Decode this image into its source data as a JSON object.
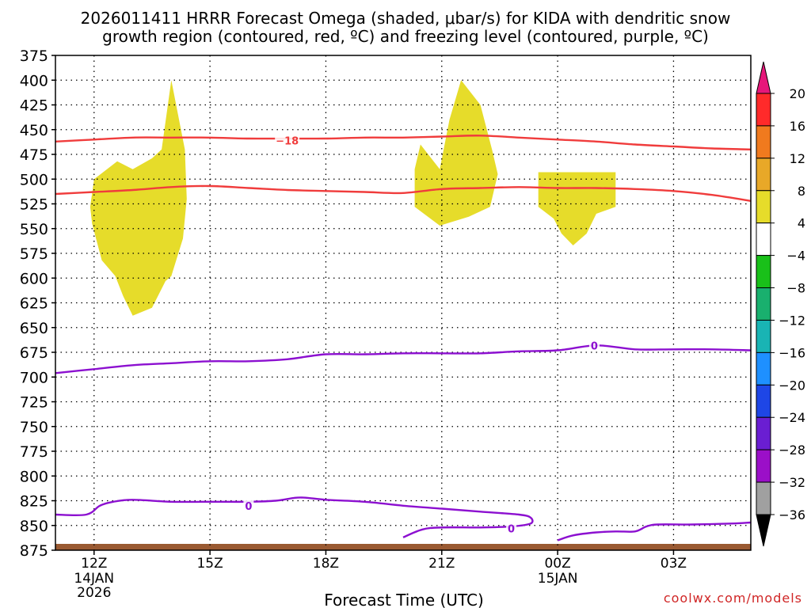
{
  "chart_data": {
    "type": "contour-timeheight",
    "title_line1": "2026011411 HRRR Forecast Omega (shaded, μbar/s) for KIDA with dendritic snow",
    "title_line2": "growth region (contoured, red, ºC) and freezing level (contoured, purple, ºC)",
    "xlabel": "Forecast Time (UTC)",
    "credit": "coolwx.com/models",
    "x_range_hours": [
      11,
      29
    ],
    "y_range_hpa": [
      375,
      875
    ],
    "y_ticks": [
      375,
      400,
      425,
      450,
      475,
      500,
      525,
      550,
      575,
      600,
      625,
      650,
      675,
      700,
      725,
      750,
      775,
      800,
      825,
      850,
      875
    ],
    "x_ticks": [
      {
        "hour": 12,
        "label": "12Z",
        "sub": [
          "14JAN",
          "2026"
        ]
      },
      {
        "hour": 15,
        "label": "15Z",
        "sub": []
      },
      {
        "hour": 18,
        "label": "18Z",
        "sub": []
      },
      {
        "hour": 21,
        "label": "21Z",
        "sub": []
      },
      {
        "hour": 24,
        "label": "00Z",
        "sub": [
          "15JAN"
        ]
      },
      {
        "hour": 27,
        "label": "03Z",
        "sub": []
      }
    ],
    "colorbar": {
      "levels": [
        "20",
        "16",
        "12",
        "8",
        "4",
        "−4",
        "−8",
        "−12",
        "−16",
        "−20",
        "−24",
        "−28",
        "−32",
        "−36"
      ],
      "colors": [
        "#ff2a2a",
        "#f07a1e",
        "#e8a828",
        "#e6dc2a",
        "#ffffff",
        "#19c019",
        "#19b06e",
        "#19b4b4",
        "#1e90ff",
        "#1e46e6",
        "#6a1ed2",
        "#9b0fc8",
        "#a0a0a0"
      ],
      "top_arrow_color": "#e6177a",
      "bottom_arrow_color": "#000000"
    },
    "omega_shaded": [
      {
        "name": "omega-area-1",
        "bin": "4 to 8",
        "color": "#e6dc2a",
        "points": [
          [
            13.0,
            490
          ],
          [
            13.5,
            479
          ],
          [
            13.75,
            470
          ],
          [
            14.0,
            400
          ],
          [
            14.35,
            470
          ],
          [
            14.4,
            520
          ],
          [
            14.3,
            560
          ],
          [
            14.0,
            598
          ],
          [
            13.85,
            603
          ],
          [
            13.5,
            630
          ],
          [
            13.0,
            638
          ],
          [
            12.75,
            618
          ],
          [
            12.55,
            598
          ],
          [
            12.2,
            582
          ],
          [
            11.95,
            545
          ],
          [
            11.9,
            528
          ],
          [
            12.0,
            500
          ],
          [
            12.6,
            482
          ]
        ]
      },
      {
        "name": "omega-area-2",
        "bin": "4 to 8",
        "color": "#e6dc2a",
        "points": [
          [
            20.95,
            490
          ],
          [
            21.2,
            440
          ],
          [
            21.5,
            400
          ],
          [
            22.0,
            425
          ],
          [
            22.3,
            470
          ],
          [
            22.45,
            495
          ],
          [
            22.25,
            528
          ],
          [
            21.7,
            538
          ],
          [
            20.95,
            547
          ],
          [
            20.3,
            528
          ],
          [
            20.3,
            490
          ],
          [
            20.45,
            465
          ]
        ]
      },
      {
        "name": "omega-area-3",
        "bin": "4 to 8",
        "color": "#e6dc2a",
        "points": [
          [
            23.5,
            493
          ],
          [
            25.5,
            493
          ],
          [
            25.5,
            528
          ],
          [
            25.0,
            535
          ],
          [
            24.75,
            555
          ],
          [
            24.4,
            567
          ],
          [
            24.1,
            555
          ],
          [
            23.9,
            540
          ],
          [
            23.5,
            528
          ]
        ]
      }
    ],
    "dendritic_contours": [
      {
        "name": "isotherm-minus18-upper",
        "label": "−18",
        "label_at": [
          17.0,
          461
        ],
        "points": [
          [
            11.0,
            462
          ],
          [
            12.0,
            460
          ],
          [
            13.0,
            458
          ],
          [
            14.0,
            458
          ],
          [
            15.0,
            458
          ],
          [
            16.0,
            459
          ],
          [
            17.0,
            459
          ],
          [
            18.0,
            459
          ],
          [
            19.0,
            458
          ],
          [
            20.0,
            458
          ],
          [
            21.0,
            457
          ],
          [
            22.0,
            456
          ],
          [
            23.0,
            458
          ],
          [
            24.0,
            460
          ],
          [
            25.0,
            462
          ],
          [
            26.0,
            465
          ],
          [
            27.0,
            467
          ],
          [
            28.0,
            469
          ],
          [
            29.0,
            470
          ]
        ]
      },
      {
        "name": "isotherm-minus18-lower",
        "label": "",
        "points": [
          [
            11.0,
            515
          ],
          [
            12.0,
            513
          ],
          [
            13.0,
            511
          ],
          [
            14.0,
            508
          ],
          [
            15.0,
            507
          ],
          [
            16.0,
            509
          ],
          [
            17.0,
            511
          ],
          [
            18.0,
            512
          ],
          [
            19.0,
            513
          ],
          [
            20.0,
            514
          ],
          [
            21.0,
            510
          ],
          [
            22.0,
            509
          ],
          [
            23.0,
            508
          ],
          [
            24.0,
            509
          ],
          [
            25.0,
            509
          ],
          [
            26.0,
            510
          ],
          [
            27.0,
            512
          ],
          [
            28.0,
            516
          ],
          [
            29.0,
            522
          ]
        ]
      }
    ],
    "freezing_contours": [
      {
        "name": "freezing-level-upper",
        "label": "0",
        "label_at": [
          24.95,
          668
        ],
        "points": [
          [
            11.0,
            696
          ],
          [
            12.0,
            692
          ],
          [
            13.0,
            688
          ],
          [
            14.0,
            686
          ],
          [
            15.0,
            684
          ],
          [
            16.0,
            684
          ],
          [
            17.0,
            682
          ],
          [
            18.0,
            677
          ],
          [
            19.0,
            677
          ],
          [
            20.0,
            676
          ],
          [
            21.0,
            676
          ],
          [
            22.0,
            676
          ],
          [
            23.0,
            674
          ],
          [
            24.0,
            673
          ],
          [
            25.0,
            668
          ],
          [
            26.0,
            672
          ],
          [
            27.0,
            672
          ],
          [
            28.0,
            672
          ],
          [
            29.0,
            673
          ]
        ]
      },
      {
        "name": "freezing-level-lower-a",
        "label": "0",
        "label_at": [
          16.0,
          830
        ],
        "points": [
          [
            11.0,
            839
          ],
          [
            11.8,
            839
          ],
          [
            12.15,
            830
          ],
          [
            12.5,
            826
          ],
          [
            13.0,
            824
          ],
          [
            14.0,
            826
          ],
          [
            15.0,
            826
          ],
          [
            16.0,
            826
          ],
          [
            16.7,
            825
          ],
          [
            17.2,
            822
          ],
          [
            17.5,
            822
          ],
          [
            18.0,
            824
          ],
          [
            19.0,
            826
          ],
          [
            20.0,
            830
          ],
          [
            21.0,
            833
          ],
          [
            22.0,
            836
          ],
          [
            23.0,
            839
          ],
          [
            23.3,
            842
          ],
          [
            23.3,
            848
          ],
          [
            22.8,
            851
          ],
          [
            22.0,
            852
          ],
          [
            21.0,
            852
          ],
          [
            20.5,
            854
          ],
          [
            20.0,
            862
          ]
        ]
      },
      {
        "name": "freezing-level-lower-b",
        "label": "0",
        "label_at": [
          22.8,
          853
        ],
        "points": [
          [
            24.0,
            865
          ],
          [
            24.4,
            860
          ],
          [
            25.0,
            857
          ],
          [
            25.5,
            856
          ],
          [
            26.0,
            856
          ],
          [
            26.3,
            851
          ],
          [
            26.6,
            849
          ],
          [
            27.5,
            849
          ],
          [
            28.5,
            848
          ],
          [
            29.0,
            847
          ]
        ]
      }
    ]
  }
}
